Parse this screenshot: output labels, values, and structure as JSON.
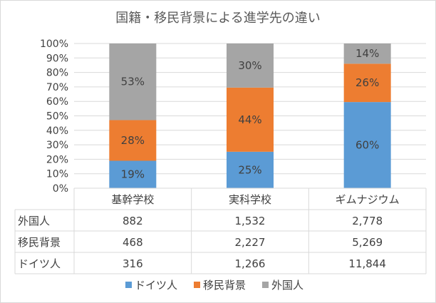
{
  "chart_data": {
    "type": "bar",
    "stacked": "percent",
    "title": "国籍・移民背景による進学先の違い",
    "categories": [
      "基幹学校",
      "実科学校",
      "ギムナジウム"
    ],
    "y_ticks": [
      "0%",
      "10%",
      "20%",
      "30%",
      "40%",
      "50%",
      "60%",
      "70%",
      "80%",
      "90%",
      "100%"
    ],
    "ylim": [
      0,
      100
    ],
    "grid": true,
    "legend_position": "bottom",
    "series": [
      {
        "name": "ドイツ人",
        "color": "#5b9bd5",
        "values": [
          316,
          1266,
          11844
        ],
        "table_values": [
          "316",
          "1,266",
          "11,844"
        ],
        "percent_labels": [
          "19%",
          "25%",
          "60%"
        ]
      },
      {
        "name": "移民背景",
        "color": "#ed7d31",
        "values": [
          468,
          2227,
          5269
        ],
        "table_values": [
          "468",
          "2,227",
          "5,269"
        ],
        "percent_labels": [
          "28%",
          "44%",
          "26%"
        ]
      },
      {
        "name": "外国人",
        "color": "#a5a5a5",
        "values": [
          882,
          1532,
          2778
        ],
        "table_values": [
          "882",
          "1,532",
          "2,778"
        ],
        "percent_labels": [
          "53%",
          "30%",
          "14%"
        ]
      }
    ],
    "table_row_order": [
      2,
      1,
      0
    ]
  }
}
